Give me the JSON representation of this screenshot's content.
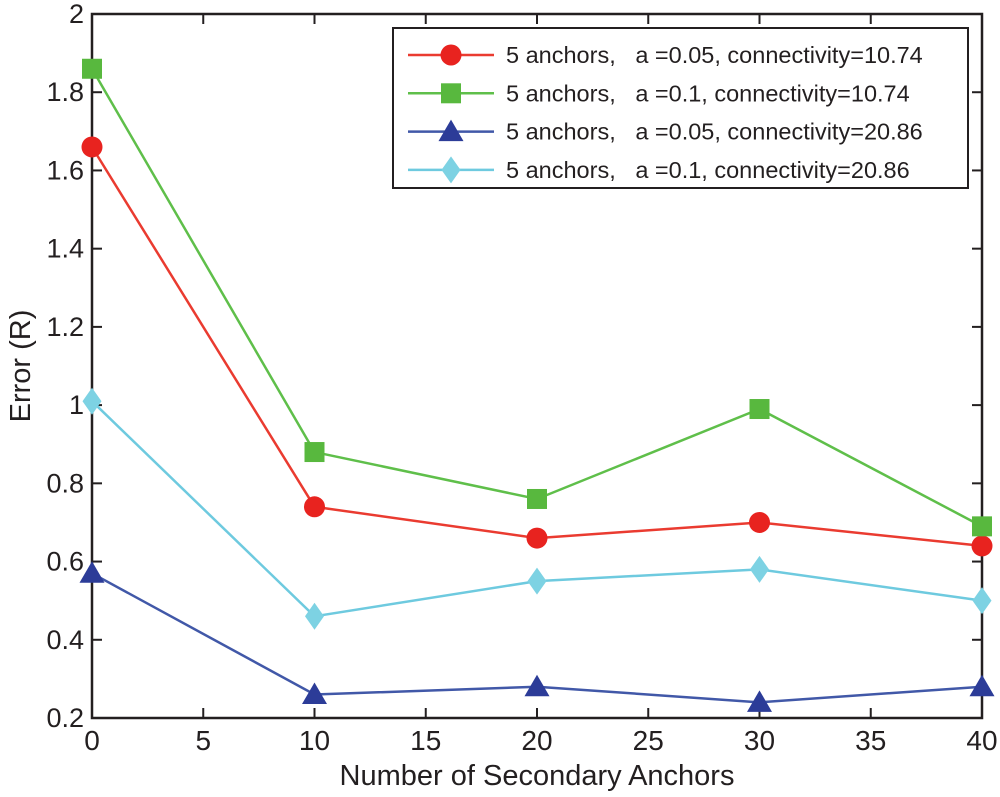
{
  "figure": {
    "background": "#ffffff",
    "text_color": "#231f20",
    "axis_color": "#231f20"
  },
  "chart_data": {
    "type": "line",
    "title": "",
    "xlabel": "Number of Secondary Anchors",
    "ylabel": "Error (R)",
    "xlim": [
      0,
      40
    ],
    "ylim": [
      0.2,
      2
    ],
    "xticks": [
      0,
      5,
      10,
      15,
      20,
      25,
      30,
      35,
      40
    ],
    "xtick_labels": [
      "0",
      "5",
      "10",
      "15",
      "20",
      "25",
      "30",
      "35",
      "40"
    ],
    "yticks": [
      0.2,
      0.4,
      0.6,
      0.8,
      1,
      1.2,
      1.4,
      1.6,
      1.8,
      2
    ],
    "ytick_labels": [
      "0.2",
      "0.4",
      "0.6",
      "0.8",
      "1",
      "1.2",
      "1.4",
      "1.6",
      "1.8",
      "2"
    ],
    "grid": false,
    "legend_position": "upper-right",
    "x": [
      0,
      10,
      20,
      30,
      40
    ],
    "series": [
      {
        "name": "5 anchors,   a =0.05, connectivity=10.74",
        "marker": "circle",
        "marker_color": "#e8231f",
        "line_color": "#ea3b30",
        "values": [
          1.66,
          0.74,
          0.66,
          0.7,
          0.64
        ]
      },
      {
        "name": "5 anchors,   a =0.1, connectivity=10.74",
        "marker": "square",
        "marker_color": "#58b83e",
        "line_color": "#5fbf4a",
        "values": [
          1.86,
          0.88,
          0.76,
          0.99,
          0.69
        ]
      },
      {
        "name": "5 anchors,   a =0.05, connectivity=20.86",
        "marker": "triangle",
        "marker_color": "#2c3c98",
        "line_color": "#4158a8",
        "values": [
          0.57,
          0.26,
          0.28,
          0.24,
          0.28
        ]
      },
      {
        "name": "5 anchors,   a =0.1, connectivity=20.86",
        "marker": "diamond",
        "marker_color": "#7dd2e3",
        "line_color": "#6ecadf",
        "values": [
          1.01,
          0.46,
          0.55,
          0.58,
          0.5
        ]
      }
    ]
  }
}
